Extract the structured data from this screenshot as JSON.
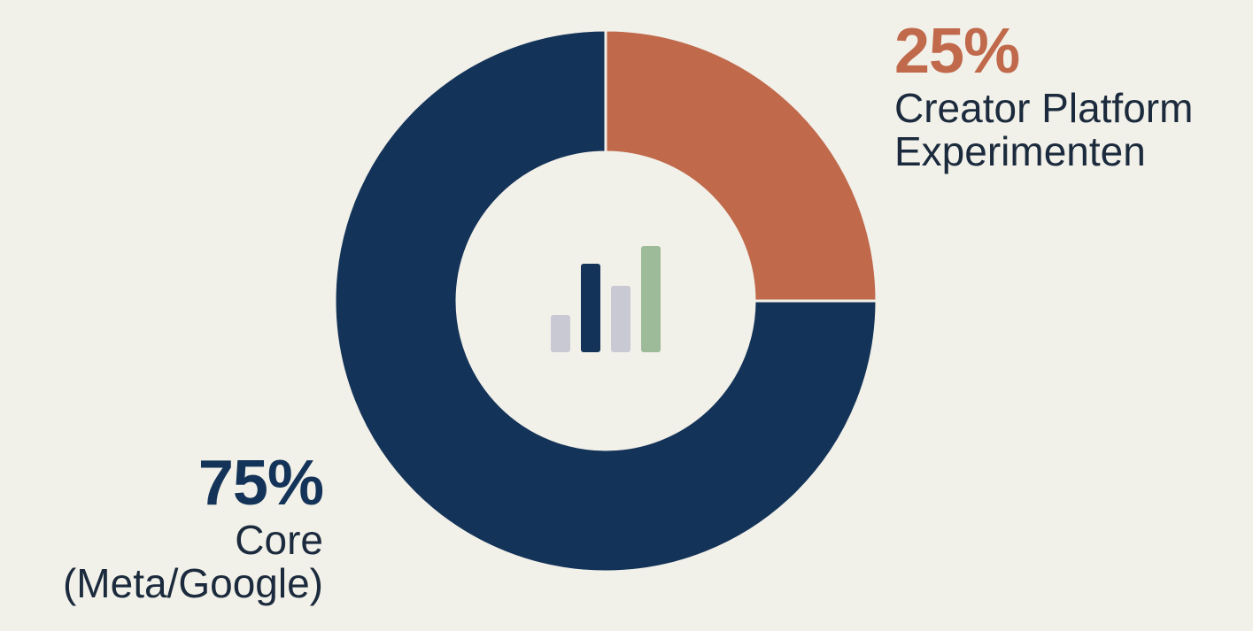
{
  "chart_data": {
    "type": "pie",
    "donut": true,
    "slices": [
      {
        "percent_label": "25%",
        "value": 25,
        "label_lines": [
          "Creator Platform",
          "Experimenten"
        ],
        "color": "#c0694b"
      },
      {
        "percent_label": "75%",
        "value": 75,
        "label_lines": [
          "Core",
          "(Meta/Google)"
        ],
        "color": "#143358"
      }
    ],
    "center_icon": {
      "name": "bar-chart-icon",
      "bar_colors": [
        "#c9c9d3",
        "#143358",
        "#c9c9d3",
        "#9dbb98"
      ],
      "bar_levels": [
        0.42,
        1.0,
        0.75,
        1.2
      ]
    }
  }
}
